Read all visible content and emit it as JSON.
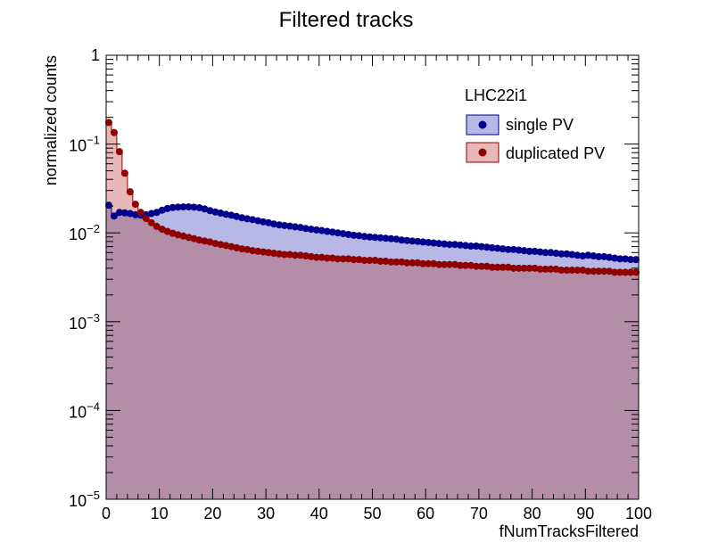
{
  "chart_data": {
    "type": "area",
    "title": "Filtered tracks",
    "xlabel": "fNumTracksFiltered",
    "ylabel": "normalized counts",
    "xlim": [
      0,
      100
    ],
    "ylim": [
      1e-05,
      1
    ],
    "yscale": "log",
    "x_ticks": [
      "0",
      "10",
      "20",
      "30",
      "40",
      "50",
      "60",
      "70",
      "80",
      "90",
      "100"
    ],
    "y_ticks": [
      {
        "base": "1",
        "exp": ""
      },
      {
        "base": "10",
        "exp": "−1"
      },
      {
        "base": "10",
        "exp": "−2"
      },
      {
        "base": "10",
        "exp": "−3"
      },
      {
        "base": "10",
        "exp": "−4"
      },
      {
        "base": "10",
        "exp": "−5"
      }
    ],
    "legend": {
      "header": "LHC22i1",
      "position": "top-right"
    },
    "grid": false,
    "series": [
      {
        "name": "single PV",
        "marker_color": "#00008f",
        "fill_color": "#b8b8e6",
        "line_color": "#00008f",
        "x": [
          0,
          1,
          2,
          3,
          4,
          5,
          6,
          7,
          8,
          9,
          10,
          11,
          12,
          13,
          14,
          15,
          16,
          17,
          18,
          19,
          20,
          21,
          22,
          23,
          24,
          25,
          26,
          27,
          28,
          29,
          30,
          31,
          32,
          33,
          34,
          35,
          36,
          37,
          38,
          39,
          40,
          41,
          42,
          43,
          44,
          45,
          46,
          47,
          48,
          49,
          50,
          51,
          52,
          53,
          54,
          55,
          56,
          57,
          58,
          59,
          60,
          61,
          62,
          63,
          64,
          65,
          66,
          67,
          68,
          69,
          70,
          71,
          72,
          73,
          74,
          75,
          76,
          77,
          78,
          79,
          80,
          81,
          82,
          83,
          84,
          85,
          86,
          87,
          88,
          89,
          90,
          91,
          92,
          93,
          94,
          95,
          96,
          97,
          98,
          99
        ],
        "values": [
          0.0205,
          0.0155,
          0.017,
          0.0168,
          0.0165,
          0.016,
          0.0158,
          0.016,
          0.0165,
          0.017,
          0.018,
          0.0188,
          0.0193,
          0.0195,
          0.0196,
          0.0196,
          0.0195,
          0.0192,
          0.0186,
          0.0178,
          0.0172,
          0.0167,
          0.0162,
          0.0158,
          0.0153,
          0.0148,
          0.0144,
          0.0141,
          0.0137,
          0.0133,
          0.013,
          0.0126,
          0.0123,
          0.0121,
          0.0119,
          0.0117,
          0.0115,
          0.0112,
          0.011,
          0.0108,
          0.0106,
          0.0104,
          0.0102,
          0.01,
          0.0098,
          0.0096,
          0.0094,
          0.0093,
          0.0091,
          0.009,
          0.0089,
          0.0088,
          0.0087,
          0.0086,
          0.0085,
          0.0083,
          0.0082,
          0.0081,
          0.008,
          0.0079,
          0.0078,
          0.0077,
          0.0076,
          0.0075,
          0.0074,
          0.0074,
          0.0073,
          0.0072,
          0.0071,
          0.0071,
          0.007,
          0.0069,
          0.0068,
          0.0067,
          0.0066,
          0.0065,
          0.0065,
          0.0064,
          0.0063,
          0.0062,
          0.0062,
          0.0061,
          0.006,
          0.006,
          0.0059,
          0.0058,
          0.0058,
          0.0057,
          0.0056,
          0.0055,
          0.0056,
          0.0055,
          0.0054,
          0.0054,
          0.0053,
          0.0052,
          0.0051,
          0.0051,
          0.005,
          0.005
        ]
      },
      {
        "name": "duplicated PV",
        "marker_color": "#8f0000",
        "fill_color": "#e6b8b8",
        "line_color": "#8f0000",
        "x": [
          0,
          1,
          2,
          3,
          4,
          5,
          6,
          7,
          8,
          9,
          10,
          11,
          12,
          13,
          14,
          15,
          16,
          17,
          18,
          19,
          20,
          21,
          22,
          23,
          24,
          25,
          26,
          27,
          28,
          29,
          30,
          31,
          32,
          33,
          34,
          35,
          36,
          37,
          38,
          39,
          40,
          41,
          42,
          43,
          44,
          45,
          46,
          47,
          48,
          49,
          50,
          51,
          52,
          53,
          54,
          55,
          56,
          57,
          58,
          59,
          60,
          61,
          62,
          63,
          64,
          65,
          66,
          67,
          68,
          69,
          70,
          71,
          72,
          73,
          74,
          75,
          76,
          77,
          78,
          79,
          80,
          81,
          82,
          83,
          84,
          85,
          86,
          87,
          88,
          89,
          90,
          91,
          92,
          93,
          94,
          95,
          96,
          97,
          98,
          99
        ],
        "values": [
          0.175,
          0.135,
          0.082,
          0.047,
          0.029,
          0.021,
          0.017,
          0.0145,
          0.013,
          0.0118,
          0.011,
          0.0104,
          0.0099,
          0.0095,
          0.0092,
          0.0089,
          0.0086,
          0.0083,
          0.0081,
          0.0079,
          0.0076,
          0.0074,
          0.0072,
          0.007,
          0.0068,
          0.0066,
          0.0065,
          0.0063,
          0.0062,
          0.0061,
          0.006,
          0.0059,
          0.0058,
          0.0057,
          0.0057,
          0.0056,
          0.0056,
          0.0055,
          0.0054,
          0.0053,
          0.0053,
          0.0052,
          0.0052,
          0.0051,
          0.0051,
          0.0051,
          0.005,
          0.005,
          0.0049,
          0.0049,
          0.0049,
          0.0048,
          0.0048,
          0.0047,
          0.0047,
          0.0047,
          0.0046,
          0.0046,
          0.0046,
          0.0045,
          0.0045,
          0.0045,
          0.0044,
          0.0044,
          0.0044,
          0.0044,
          0.0043,
          0.0043,
          0.0043,
          0.0042,
          0.0042,
          0.0042,
          0.0041,
          0.0041,
          0.0041,
          0.0041,
          0.004,
          0.004,
          0.004,
          0.004,
          0.004,
          0.0039,
          0.0039,
          0.0039,
          0.0039,
          0.0038,
          0.0038,
          0.0038,
          0.0038,
          0.0038,
          0.0037,
          0.0037,
          0.0037,
          0.0037,
          0.0037,
          0.0036,
          0.0036,
          0.0036,
          0.0036,
          0.0036
        ]
      }
    ],
    "overlap_fill_color": "#b48ea8"
  }
}
